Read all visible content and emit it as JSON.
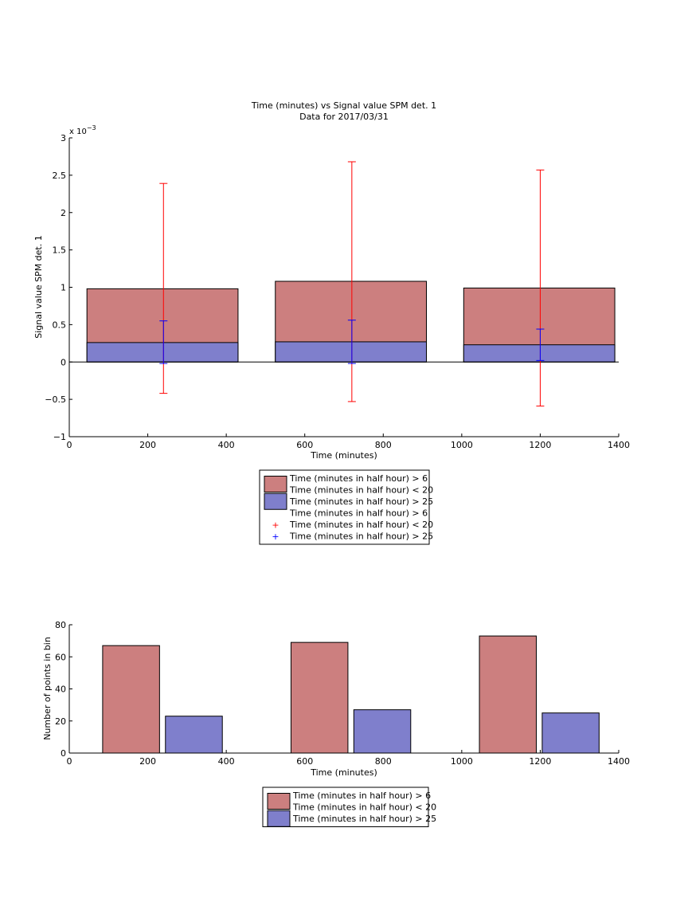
{
  "colors": {
    "series_a": "#cc7f7f",
    "series_b": "#7f7fcc",
    "err_a": "#ff0000",
    "err_b": "#0000ff",
    "axis": "#000000"
  },
  "chart_data": [
    {
      "type": "bar",
      "title": "Time (minutes) vs Signal value SPM det. 1",
      "subtitle": "Data for 2017/03/31",
      "xlabel": "Time (minutes)",
      "ylabel": "Signal value SPM det. 1",
      "y_exponent_label": "x 10",
      "y_exponent_power": "−3",
      "xlim": [
        0,
        1400
      ],
      "ylim": [
        -1,
        3
      ],
      "xticks": [
        0,
        200,
        400,
        600,
        800,
        1000,
        1200,
        1400
      ],
      "yticks": [
        -1,
        -0.5,
        0,
        0.5,
        1,
        1.5,
        2,
        2.5,
        3
      ],
      "ytick_labels": [
        "−1",
        "−0.5",
        "0",
        "0.5",
        "1",
        "1.5",
        "2",
        "2.5",
        "3"
      ],
      "grid": false,
      "bar_mode": "overlay",
      "bar_groups": [
        {
          "x0": 45,
          "x1": 430,
          "center": 240
        },
        {
          "x0": 525,
          "x1": 910,
          "center": 720
        },
        {
          "x0": 1005,
          "x1": 1390,
          "center": 1200
        }
      ],
      "series": [
        {
          "values": [
            0.98,
            1.08,
            0.99
          ],
          "err_low": [
            -0.42,
            -0.53,
            -0.59
          ],
          "err_high": [
            2.39,
            2.68,
            2.57
          ],
          "color_key": "series_a",
          "err_color_key": "err_a"
        },
        {
          "values": [
            0.26,
            0.27,
            0.23
          ],
          "err_low": [
            -0.02,
            -0.02,
            0.02
          ],
          "err_high": [
            0.55,
            0.56,
            0.44
          ],
          "color_key": "series_b",
          "err_color_key": "err_b"
        }
      ],
      "legend": {
        "placement": "below",
        "entries": [
          {
            "kind": "patch",
            "color_key": "series_a",
            "lines": [
              "Time (minutes in half hour) > 6",
              "Time (minutes in half hour) < 20"
            ]
          },
          {
            "kind": "patch",
            "color_key": "series_b",
            "lines": [
              "Time (minutes in half hour) > 25"
            ]
          },
          {
            "kind": "none",
            "lines": [
              "Time (minutes in half hour) > 6"
            ]
          },
          {
            "kind": "marker",
            "color_key": "err_a",
            "lines": [
              "Time (minutes in half hour) < 20"
            ]
          },
          {
            "kind": "marker",
            "color_key": "err_b",
            "lines": [
              "Time (minutes in half hour) > 25"
            ]
          }
        ]
      }
    },
    {
      "type": "bar",
      "title": "",
      "xlabel": "Time (minutes)",
      "ylabel": "Number of points in bin",
      "xlim": [
        0,
        1400
      ],
      "ylim": [
        0,
        80
      ],
      "xticks": [
        0,
        200,
        400,
        600,
        800,
        1000,
        1200,
        1400
      ],
      "yticks": [
        0,
        20,
        40,
        60,
        80
      ],
      "ytick_labels": [
        "0",
        "20",
        "40",
        "60",
        "80"
      ],
      "grid": false,
      "bar_mode": "grouped",
      "bars": [
        {
          "x0": 85,
          "x1": 230,
          "value": 67,
          "color_key": "series_a"
        },
        {
          "x0": 245,
          "x1": 390,
          "value": 23,
          "color_key": "series_b"
        },
        {
          "x0": 565,
          "x1": 710,
          "value": 69,
          "color_key": "series_a"
        },
        {
          "x0": 725,
          "x1": 870,
          "value": 27,
          "color_key": "series_b"
        },
        {
          "x0": 1045,
          "x1": 1190,
          "value": 73,
          "color_key": "series_a"
        },
        {
          "x0": 1205,
          "x1": 1350,
          "value": 25,
          "color_key": "series_b"
        }
      ],
      "legend": {
        "placement": "below",
        "entries": [
          {
            "kind": "patch",
            "color_key": "series_a",
            "lines": [
              "Time (minutes in half hour) > 6",
              "Time (minutes in half hour) < 20"
            ]
          },
          {
            "kind": "patch",
            "color_key": "series_b",
            "lines": [
              "Time (minutes in half hour) > 25"
            ]
          }
        ]
      }
    }
  ]
}
